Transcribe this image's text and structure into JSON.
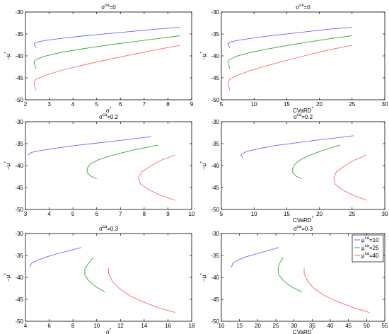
{
  "colors": {
    "series": [
      "#6666ff",
      "#33aa33",
      "#ff6666"
    ],
    "axes": "#000000",
    "background": "#ffffff"
  },
  "legend": {
    "placement": "top-right of bottom-right panel",
    "entries": [
      {
        "base": "μ",
        "sup": "ca",
        "suffix": "=10"
      },
      {
        "base": "μ",
        "sup": "ca",
        "suffix": "=25"
      },
      {
        "base": "μ",
        "sup": "ca",
        "suffix": "=40"
      }
    ]
  },
  "chart_data": [
    {
      "type": "line",
      "title": {
        "base": "σ",
        "sup": "ca",
        "suffix": "=0"
      },
      "xlabel": {
        "base": "σ",
        "sup": "*",
        "suffix": ""
      },
      "ylabel": {
        "base": "−μ",
        "sup": "*",
        "suffix": ""
      },
      "xlim": [
        2,
        9
      ],
      "ylim": [
        -50,
        -30
      ],
      "xticks": [
        "2",
        "3",
        "4",
        "5",
        "6",
        "7",
        "8",
        "9"
      ],
      "yticks": [
        "-50",
        "-45",
        "-40",
        "-35",
        "-30"
      ],
      "grid": false,
      "series": [
        {
          "x": [
            2.45,
            2.38,
            2.36,
            2.45,
            2.8,
            3.5,
            4.5,
            5.5,
            6.5,
            7.5,
            8.5
          ],
          "y": [
            -38.2,
            -37.6,
            -37.2,
            -36.9,
            -36.5,
            -36.0,
            -35.4,
            -34.9,
            -34.4,
            -33.9,
            -33.5
          ]
        },
        {
          "x": [
            2.45,
            2.38,
            2.36,
            2.45,
            2.8,
            3.5,
            4.5,
            5.5,
            6.5,
            7.5,
            8.5
          ],
          "y": [
            -42.9,
            -42.0,
            -41.3,
            -40.8,
            -40.1,
            -39.2,
            -38.3,
            -37.5,
            -36.8,
            -36.1,
            -35.4
          ]
        },
        {
          "x": [
            2.45,
            2.38,
            2.36,
            2.45,
            2.8,
            3.5,
            4.5,
            5.5,
            6.5,
            7.5,
            8.5
          ],
          "y": [
            -47.8,
            -46.8,
            -46.0,
            -45.3,
            -44.5,
            -43.3,
            -42.0,
            -40.8,
            -39.7,
            -38.6,
            -37.6
          ]
        }
      ]
    },
    {
      "type": "line",
      "title": {
        "base": "σ",
        "sup": "ca",
        "suffix": "=0"
      },
      "xlabel": {
        "base": "CVaRD",
        "sup": "*",
        "suffix": ""
      },
      "ylabel": {
        "base": "−μ",
        "sup": "*",
        "suffix": ""
      },
      "xlim": [
        5,
        30
      ],
      "ylim": [
        -50,
        -30
      ],
      "xticks": [
        "5",
        "10",
        "15",
        "20",
        "25",
        "30"
      ],
      "yticks": [
        "-50",
        "-45",
        "-40",
        "-35",
        "-30"
      ],
      "grid": false,
      "series": [
        {
          "x": [
            6.3,
            6.1,
            6.0,
            6.3,
            7.3,
            9.5,
            12.5,
            15.5,
            18.5,
            21.5,
            25.0
          ],
          "y": [
            -38.2,
            -37.6,
            -37.2,
            -36.9,
            -36.5,
            -36.0,
            -35.4,
            -34.9,
            -34.4,
            -33.9,
            -33.5
          ]
        },
        {
          "x": [
            6.3,
            6.1,
            6.0,
            6.3,
            7.3,
            9.5,
            12.5,
            15.5,
            18.5,
            21.5,
            25.0
          ],
          "y": [
            -42.9,
            -42.0,
            -41.3,
            -40.8,
            -40.1,
            -39.2,
            -38.3,
            -37.5,
            -36.8,
            -36.1,
            -35.4
          ]
        },
        {
          "x": [
            6.3,
            6.1,
            6.0,
            6.3,
            7.3,
            9.5,
            12.5,
            15.5,
            18.5,
            21.5,
            25.0
          ],
          "y": [
            -47.8,
            -46.8,
            -46.0,
            -45.3,
            -44.5,
            -43.3,
            -42.0,
            -40.8,
            -39.7,
            -38.6,
            -37.6
          ]
        }
      ]
    },
    {
      "type": "line",
      "title": {
        "base": "σ",
        "sup": "ca",
        "suffix": "=0.2"
      },
      "xlabel": {
        "base": "",
        "sup": "",
        "suffix": ""
      },
      "ylabel": {
        "base": "−μ",
        "sup": "*",
        "suffix": ""
      },
      "xlim": [
        3,
        10
      ],
      "ylim": [
        -50,
        -30
      ],
      "xticks": [
        "3",
        "4",
        "5",
        "6",
        "7",
        "8",
        "9",
        "10"
      ],
      "yticks": [
        "-50",
        "-45",
        "-40",
        "-35",
        "-30"
      ],
      "grid": false,
      "series": [
        {
          "x": [
            3.1,
            3.25,
            3.6,
            4.2,
            5.0,
            5.8,
            6.6,
            7.4,
            8.3
          ],
          "y": [
            -37.6,
            -37.0,
            -36.6,
            -36.1,
            -35.5,
            -35.0,
            -34.5,
            -34.0,
            -33.4
          ]
        },
        {
          "x": [
            6.0,
            5.75,
            5.6,
            5.6,
            5.75,
            6.1,
            6.7,
            7.5,
            8.6
          ],
          "y": [
            -43.0,
            -42.4,
            -41.6,
            -40.6,
            -39.6,
            -38.6,
            -37.6,
            -36.5,
            -35.3
          ]
        },
        {
          "x": [
            9.3,
            8.7,
            8.2,
            7.85,
            7.75,
            7.9,
            8.3,
            8.7,
            9.3
          ],
          "y": [
            -47.9,
            -46.8,
            -45.5,
            -44.2,
            -42.8,
            -41.4,
            -40.0,
            -38.8,
            -37.6
          ]
        }
      ]
    },
    {
      "type": "line",
      "title": {
        "base": "σ",
        "sup": "ca",
        "suffix": "=0.2"
      },
      "xlabel": {
        "base": "CVaRD",
        "sup": "*",
        "suffix": ""
      },
      "ylabel": {
        "base": "−μ",
        "sup": "*",
        "suffix": ""
      },
      "xlim": [
        5,
        30
      ],
      "ylim": [
        -50,
        -30
      ],
      "xticks": [
        "5",
        "10",
        "15",
        "20",
        "25",
        "30"
      ],
      "yticks": [
        "-50",
        "-45",
        "-40",
        "-35",
        "-30"
      ],
      "grid": false,
      "series": [
        {
          "x": [
            8.3,
            8.0,
            8.8,
            10.5,
            13.0,
            16.0,
            19.0,
            22.0,
            25.2
          ],
          "y": [
            -38.3,
            -37.5,
            -36.8,
            -36.2,
            -35.5,
            -34.9,
            -34.3,
            -33.8,
            -33.2
          ]
        },
        {
          "x": [
            17.3,
            16.4,
            15.9,
            15.9,
            16.3,
            17.2,
            18.6,
            20.6,
            23.2
          ],
          "y": [
            -43.0,
            -42.4,
            -41.6,
            -40.6,
            -39.6,
            -38.6,
            -37.6,
            -36.5,
            -35.3
          ]
        },
        {
          "x": [
            27.3,
            25.2,
            23.5,
            22.4,
            22.2,
            22.6,
            23.9,
            25.3,
            27.2
          ],
          "y": [
            -47.9,
            -46.8,
            -45.5,
            -44.2,
            -42.8,
            -41.4,
            -40.0,
            -38.8,
            -37.6
          ]
        }
      ]
    },
    {
      "type": "line",
      "title": {
        "base": "σ",
        "sup": "ca",
        "suffix": "=0.3"
      },
      "xlabel": {
        "base": "σ",
        "sup": "*",
        "suffix": ""
      },
      "ylabel": {
        "base": "−μ",
        "sup": "*",
        "suffix": ""
      },
      "xlim": [
        4,
        18
      ],
      "ylim": [
        -50,
        -30
      ],
      "xticks": [
        "4",
        "6",
        "8",
        "10",
        "12",
        "14",
        "16",
        "18"
      ],
      "yticks": [
        "-50",
        "-45",
        "-40",
        "-35",
        "-30"
      ],
      "grid": false,
      "series": [
        {
          "x": [
            4.4,
            4.5,
            5.0,
            5.8,
            6.7,
            7.7,
            8.7
          ],
          "y": [
            -37.7,
            -36.8,
            -36.1,
            -35.3,
            -34.6,
            -33.9,
            -33.2
          ]
        },
        {
          "x": [
            10.7,
            9.9,
            9.3,
            9.0,
            9.0,
            9.3,
            9.7
          ],
          "y": [
            -43.3,
            -42.1,
            -40.7,
            -39.4,
            -38.1,
            -36.8,
            -35.5
          ]
        },
        {
          "x": [
            16.6,
            15.3,
            14.0,
            12.8,
            11.9,
            11.3,
            11.0,
            11.0
          ],
          "y": [
            -48.0,
            -47.0,
            -45.7,
            -44.2,
            -42.5,
            -40.8,
            -39.1,
            -37.8
          ]
        }
      ]
    },
    {
      "type": "line",
      "title": {
        "base": "σ",
        "sup": "ca",
        "suffix": "=0.3"
      },
      "xlabel": {
        "base": "CVaRD",
        "sup": "*",
        "suffix": ""
      },
      "ylabel": {
        "base": "−μ",
        "sup": "*",
        "suffix": ""
      },
      "xlim": [
        10,
        55
      ],
      "ylim": [
        -50,
        -30
      ],
      "xticks": [
        "10",
        "15",
        "20",
        "25",
        "30",
        "35",
        "40",
        "45",
        "50",
        "55"
      ],
      "yticks": [
        "-50",
        "-45",
        "-40",
        "-35",
        "-30"
      ],
      "grid": false,
      "series": [
        {
          "x": [
            12.8,
            13.1,
            14.4,
            16.8,
            19.8,
            22.8,
            25.8
          ],
          "y": [
            -37.7,
            -36.8,
            -36.1,
            -35.3,
            -34.6,
            -33.9,
            -33.2
          ]
        },
        {
          "x": [
            32.2,
            29.2,
            27.0,
            25.8,
            25.6,
            26.0,
            27.0
          ],
          "y": [
            -43.3,
            -42.1,
            -40.7,
            -39.4,
            -38.1,
            -36.8,
            -35.5
          ]
        },
        {
          "x": [
            50.8,
            46.8,
            42.5,
            38.5,
            35.5,
            33.7,
            32.8,
            32.8
          ],
          "y": [
            -48.0,
            -47.0,
            -45.7,
            -44.2,
            -42.5,
            -40.8,
            -39.1,
            -37.8
          ]
        }
      ]
    }
  ]
}
